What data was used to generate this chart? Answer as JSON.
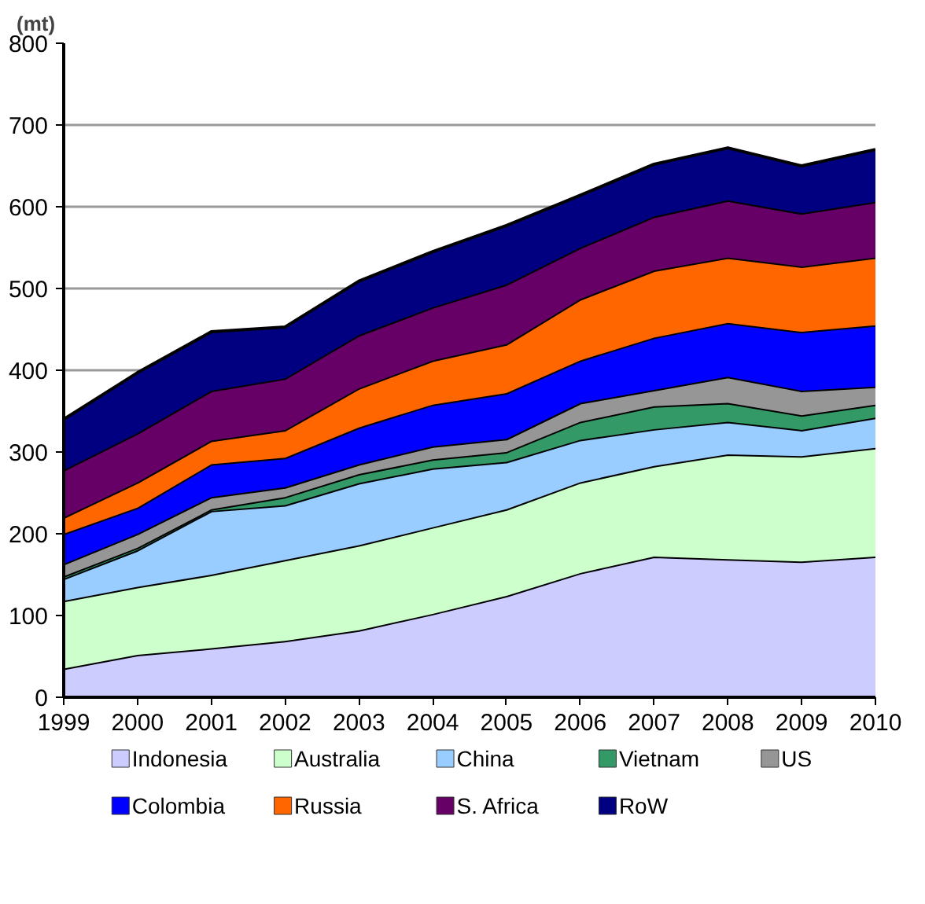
{
  "chart_data": {
    "type": "area",
    "stacked": true,
    "ylabel": "(mt)",
    "x": [
      1999,
      2000,
      2001,
      2002,
      2003,
      2004,
      2005,
      2006,
      2007,
      2008,
      2009,
      2010
    ],
    "xlim": [
      1999,
      2010
    ],
    "xticks": [
      1999,
      2000,
      2001,
      2002,
      2003,
      2004,
      2005,
      2006,
      2007,
      2008,
      2009,
      2010
    ],
    "ylim": [
      0,
      800
    ],
    "yticks": [
      0,
      100,
      200,
      300,
      400,
      500,
      600,
      700,
      800
    ],
    "grid": "y",
    "legend": "bottom",
    "series": [
      {
        "name": "Indonesia",
        "color": "#ccccff",
        "values": [
          35,
          52,
          60,
          69,
          82,
          102,
          124,
          152,
          172,
          169,
          166,
          172
        ]
      },
      {
        "name": "Australia",
        "color": "#ccffcc",
        "values": [
          83,
          83,
          90,
          99,
          104,
          106,
          106,
          111,
          111,
          128,
          129,
          133
        ]
      },
      {
        "name": "China",
        "color": "#99ccff",
        "values": [
          27,
          45,
          78,
          67,
          76,
          72,
          58,
          52,
          45,
          40,
          32,
          37
        ]
      },
      {
        "name": "Vietnam",
        "color": "#339966",
        "values": [
          3,
          3,
          2,
          10,
          11,
          11,
          12,
          22,
          28,
          23,
          18,
          16
        ]
      },
      {
        "name": "US",
        "color": "#969696",
        "values": [
          15,
          17,
          15,
          12,
          12,
          16,
          16,
          23,
          20,
          32,
          30,
          22
        ]
      },
      {
        "name": "Colombia",
        "color": "#0000ff",
        "values": [
          37,
          32,
          40,
          36,
          45,
          51,
          56,
          52,
          64,
          66,
          72,
          75
        ]
      },
      {
        "name": "Russia",
        "color": "#ff6600",
        "values": [
          20,
          31,
          29,
          34,
          48,
          54,
          60,
          75,
          82,
          80,
          80,
          83
        ]
      },
      {
        "name": "S. Africa",
        "color": "#660066",
        "values": [
          58,
          60,
          61,
          63,
          65,
          65,
          73,
          63,
          66,
          70,
          65,
          68
        ]
      },
      {
        "name": "RoW",
        "color": "#000080",
        "values": [
          62,
          74,
          72,
          63,
          66,
          68,
          72,
          64,
          64,
          64,
          58,
          64
        ]
      }
    ]
  }
}
